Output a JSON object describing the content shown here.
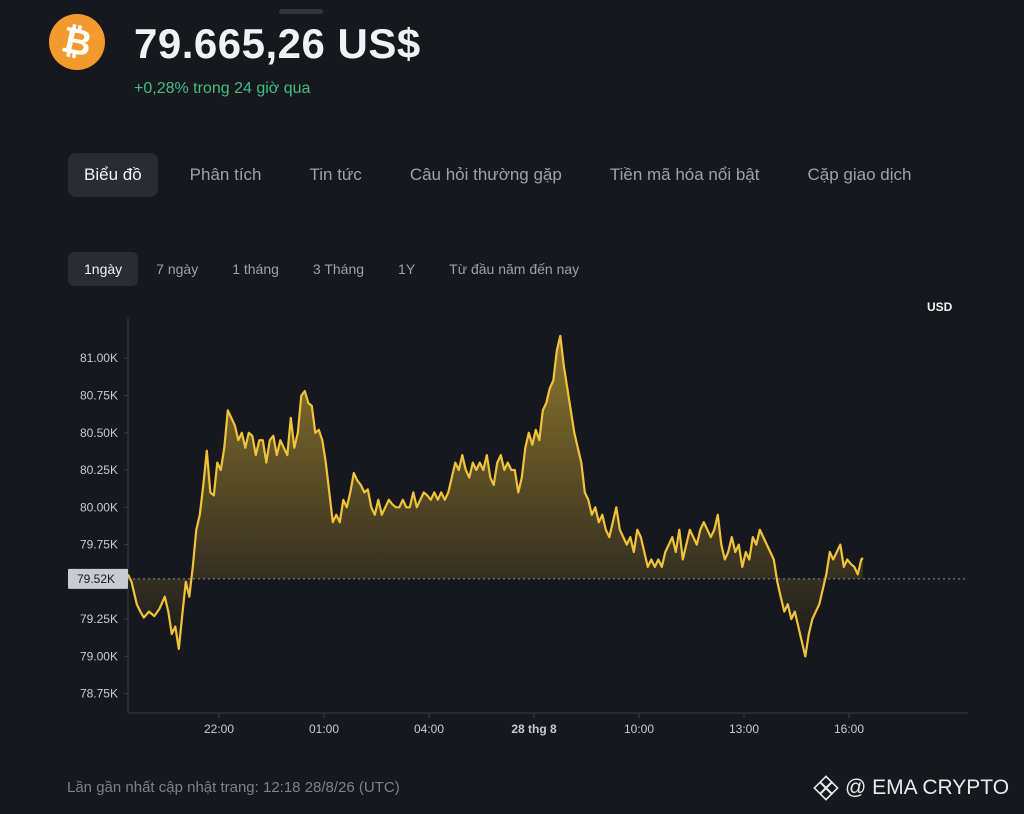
{
  "coin": {
    "icon": "bitcoin-icon",
    "symbol": "₿",
    "color": "#f39a2f"
  },
  "header": {
    "price": "79.665,26 US$",
    "change": "+0,28% trong 24 giờ qua"
  },
  "tabs": [
    "Biểu đồ",
    "Phân tích",
    "Tin tức",
    "Câu hỏi thường gặp",
    "Tiền mã hóa nổi bật",
    "Cặp giao dịch"
  ],
  "ranges": [
    "1ngày",
    "7 ngày",
    "1 tháng",
    "3 Tháng",
    "1Y",
    "Từ đầu năm đến nay"
  ],
  "chart": {
    "unit": "USD",
    "current_label": "79.52K"
  },
  "chart_data": {
    "type": "area",
    "y_ticks": [
      81000,
      80750,
      80500,
      80250,
      80000,
      79750,
      79250,
      79000,
      78750
    ],
    "y_tick_labels": [
      "81.00K",
      "80.75K",
      "80.50K",
      "80.25K",
      "80.00K",
      "79.75K",
      "79.25K",
      "79.00K",
      "78.75K"
    ],
    "x_tick_labels": [
      "22:00",
      "01:00",
      "04:00",
      "28 thg 8",
      "10:00",
      "13:00",
      "16:00"
    ],
    "x_tick_hours": [
      2.6,
      5.6,
      8.6,
      11.6,
      14.6,
      17.6,
      20.6
    ],
    "ylim": [
      78620,
      81270
    ],
    "xlim": [
      0,
      24
    ],
    "baseline": 79520,
    "line_color": "#f0c43a",
    "points": [
      [
        0.0,
        79550
      ],
      [
        0.1,
        79500
      ],
      [
        0.25,
        79350
      ],
      [
        0.35,
        79300
      ],
      [
        0.45,
        79260
      ],
      [
        0.6,
        79300
      ],
      [
        0.75,
        79270
      ],
      [
        0.9,
        79320
      ],
      [
        1.05,
        79400
      ],
      [
        1.15,
        79300
      ],
      [
        1.25,
        79150
      ],
      [
        1.35,
        79200
      ],
      [
        1.45,
        79050
      ],
      [
        1.55,
        79280
      ],
      [
        1.65,
        79500
      ],
      [
        1.75,
        79400
      ],
      [
        1.85,
        79600
      ],
      [
        1.95,
        79850
      ],
      [
        2.05,
        79950
      ],
      [
        2.15,
        80150
      ],
      [
        2.25,
        80380
      ],
      [
        2.35,
        80100
      ],
      [
        2.45,
        80080
      ],
      [
        2.55,
        80300
      ],
      [
        2.65,
        80250
      ],
      [
        2.75,
        80400
      ],
      [
        2.85,
        80650
      ],
      [
        2.95,
        80600
      ],
      [
        3.05,
        80550
      ],
      [
        3.15,
        80450
      ],
      [
        3.25,
        80500
      ],
      [
        3.35,
        80400
      ],
      [
        3.45,
        80500
      ],
      [
        3.55,
        80480
      ],
      [
        3.65,
        80350
      ],
      [
        3.75,
        80450
      ],
      [
        3.85,
        80450
      ],
      [
        3.95,
        80300
      ],
      [
        4.05,
        80450
      ],
      [
        4.15,
        80480
      ],
      [
        4.25,
        80350
      ],
      [
        4.35,
        80450
      ],
      [
        4.45,
        80400
      ],
      [
        4.55,
        80350
      ],
      [
        4.65,
        80600
      ],
      [
        4.75,
        80400
      ],
      [
        4.85,
        80500
      ],
      [
        4.95,
        80750
      ],
      [
        5.05,
        80780
      ],
      [
        5.15,
        80700
      ],
      [
        5.25,
        80680
      ],
      [
        5.35,
        80500
      ],
      [
        5.45,
        80520
      ],
      [
        5.55,
        80450
      ],
      [
        5.65,
        80300
      ],
      [
        5.75,
        80100
      ],
      [
        5.85,
        79900
      ],
      [
        5.95,
        79950
      ],
      [
        6.05,
        79900
      ],
      [
        6.15,
        80050
      ],
      [
        6.25,
        80000
      ],
      [
        6.35,
        80100
      ],
      [
        6.45,
        80230
      ],
      [
        6.55,
        80180
      ],
      [
        6.65,
        80150
      ],
      [
        6.75,
        80100
      ],
      [
        6.85,
        80120
      ],
      [
        6.95,
        80000
      ],
      [
        7.05,
        79950
      ],
      [
        7.15,
        80050
      ],
      [
        7.25,
        79950
      ],
      [
        7.35,
        80000
      ],
      [
        7.45,
        80050
      ],
      [
        7.55,
        80020
      ],
      [
        7.65,
        80000
      ],
      [
        7.75,
        80000
      ],
      [
        7.85,
        80050
      ],
      [
        7.95,
        80000
      ],
      [
        8.05,
        80000
      ],
      [
        8.15,
        80100
      ],
      [
        8.25,
        80000
      ],
      [
        8.35,
        80050
      ],
      [
        8.45,
        80100
      ],
      [
        8.55,
        80080
      ],
      [
        8.65,
        80050
      ],
      [
        8.75,
        80100
      ],
      [
        8.85,
        80050
      ],
      [
        8.95,
        80100
      ],
      [
        9.05,
        80050
      ],
      [
        9.15,
        80100
      ],
      [
        9.25,
        80200
      ],
      [
        9.35,
        80300
      ],
      [
        9.45,
        80250
      ],
      [
        9.55,
        80350
      ],
      [
        9.65,
        80250
      ],
      [
        9.75,
        80200
      ],
      [
        9.85,
        80300
      ],
      [
        9.95,
        80250
      ],
      [
        10.05,
        80300
      ],
      [
        10.15,
        80250
      ],
      [
        10.25,
        80350
      ],
      [
        10.35,
        80200
      ],
      [
        10.45,
        80150
      ],
      [
        10.55,
        80300
      ],
      [
        10.65,
        80350
      ],
      [
        10.75,
        80250
      ],
      [
        10.85,
        80300
      ],
      [
        10.95,
        80250
      ],
      [
        11.05,
        80250
      ],
      [
        11.15,
        80100
      ],
      [
        11.25,
        80200
      ],
      [
        11.35,
        80400
      ],
      [
        11.45,
        80500
      ],
      [
        11.55,
        80420
      ],
      [
        11.65,
        80520
      ],
      [
        11.75,
        80450
      ],
      [
        11.85,
        80650
      ],
      [
        11.95,
        80700
      ],
      [
        12.05,
        80800
      ],
      [
        12.15,
        80850
      ],
      [
        12.25,
        81050
      ],
      [
        12.35,
        81150
      ],
      [
        12.45,
        80950
      ],
      [
        12.55,
        80800
      ],
      [
        12.65,
        80650
      ],
      [
        12.75,
        80500
      ],
      [
        12.85,
        80400
      ],
      [
        12.95,
        80300
      ],
      [
        13.05,
        80100
      ],
      [
        13.15,
        80050
      ],
      [
        13.25,
        79950
      ],
      [
        13.35,
        80000
      ],
      [
        13.45,
        79900
      ],
      [
        13.55,
        79950
      ],
      [
        13.65,
        79850
      ],
      [
        13.75,
        79800
      ],
      [
        13.85,
        79900
      ],
      [
        13.95,
        80000
      ],
      [
        14.05,
        79850
      ],
      [
        14.15,
        79800
      ],
      [
        14.25,
        79750
      ],
      [
        14.35,
        79800
      ],
      [
        14.45,
        79700
      ],
      [
        14.55,
        79850
      ],
      [
        14.65,
        79800
      ],
      [
        14.75,
        79700
      ],
      [
        14.85,
        79600
      ],
      [
        14.95,
        79650
      ],
      [
        15.05,
        79600
      ],
      [
        15.15,
        79650
      ],
      [
        15.25,
        79600
      ],
      [
        15.35,
        79700
      ],
      [
        15.45,
        79750
      ],
      [
        15.55,
        79800
      ],
      [
        15.65,
        79700
      ],
      [
        15.75,
        79850
      ],
      [
        15.85,
        79650
      ],
      [
        15.95,
        79750
      ],
      [
        16.05,
        79850
      ],
      [
        16.15,
        79800
      ],
      [
        16.25,
        79750
      ],
      [
        16.35,
        79850
      ],
      [
        16.45,
        79900
      ],
      [
        16.55,
        79850
      ],
      [
        16.65,
        79800
      ],
      [
        16.75,
        79850
      ],
      [
        16.85,
        79950
      ],
      [
        16.95,
        79750
      ],
      [
        17.05,
        79650
      ],
      [
        17.15,
        79700
      ],
      [
        17.25,
        79800
      ],
      [
        17.35,
        79700
      ],
      [
        17.45,
        79750
      ],
      [
        17.55,
        79600
      ],
      [
        17.65,
        79700
      ],
      [
        17.75,
        79650
      ],
      [
        17.85,
        79800
      ],
      [
        17.95,
        79750
      ],
      [
        18.05,
        79850
      ],
      [
        18.15,
        79800
      ],
      [
        18.25,
        79750
      ],
      [
        18.35,
        79700
      ],
      [
        18.45,
        79650
      ],
      [
        18.55,
        79500
      ],
      [
        18.65,
        79400
      ],
      [
        18.75,
        79300
      ],
      [
        18.85,
        79350
      ],
      [
        18.95,
        79250
      ],
      [
        19.05,
        79300
      ],
      [
        19.15,
        79200
      ],
      [
        19.25,
        79100
      ],
      [
        19.35,
        79000
      ],
      [
        19.45,
        79150
      ],
      [
        19.55,
        79250
      ],
      [
        19.65,
        79300
      ],
      [
        19.75,
        79350
      ],
      [
        19.85,
        79450
      ],
      [
        19.95,
        79550
      ],
      [
        20.05,
        79700
      ],
      [
        20.15,
        79650
      ],
      [
        20.25,
        79700
      ],
      [
        20.35,
        79750
      ],
      [
        20.45,
        79600
      ],
      [
        20.55,
        79650
      ],
      [
        20.65,
        79620
      ],
      [
        20.75,
        79600
      ],
      [
        20.85,
        79550
      ],
      [
        20.95,
        79650
      ],
      [
        21.0,
        79660
      ]
    ]
  },
  "footer": {
    "updated": "Lần gần nhất cập nhật trang: 12:18 28/8/26 (UTC)"
  },
  "watermark": {
    "text": "@ EMA CRYPTO",
    "icon": "binance-icon"
  }
}
